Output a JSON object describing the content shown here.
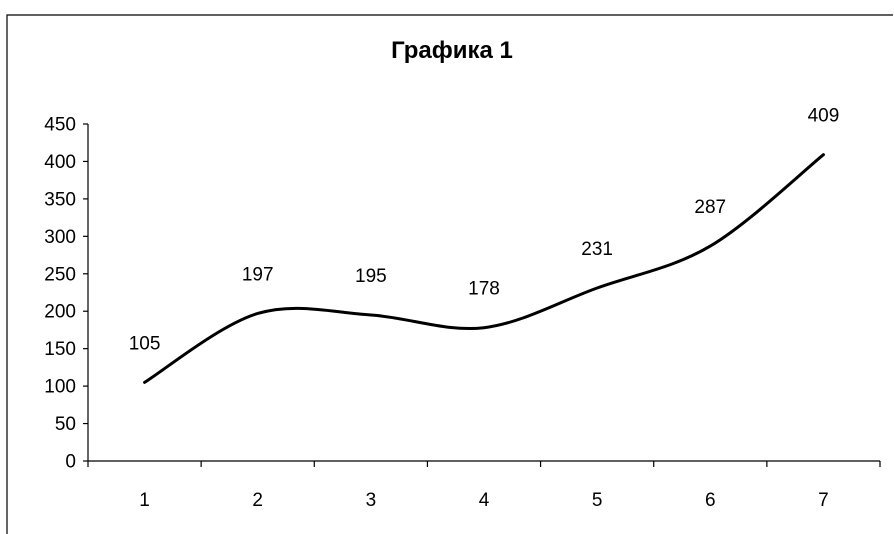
{
  "chart_data": {
    "type": "line",
    "title": "Графика 1",
    "xlabel": "",
    "ylabel": "",
    "categories": [
      "1",
      "2",
      "3",
      "4",
      "5",
      "6",
      "7"
    ],
    "values": [
      105,
      197,
      195,
      178,
      231,
      287,
      409
    ],
    "data_labels": [
      "105",
      "197",
      "195",
      "178",
      "231",
      "287",
      "409"
    ],
    "ylim": [
      0,
      450
    ],
    "yticks": [
      0,
      50,
      100,
      150,
      200,
      250,
      300,
      350,
      400,
      450
    ],
    "ytick_labels": [
      "0",
      "50",
      "100",
      "150",
      "200",
      "250",
      "300",
      "350",
      "400",
      "450"
    ],
    "smoothed": true,
    "grid": false,
    "legend": "none",
    "line_color": "#000000",
    "background": "#ffffff",
    "border_color": "#000000"
  }
}
